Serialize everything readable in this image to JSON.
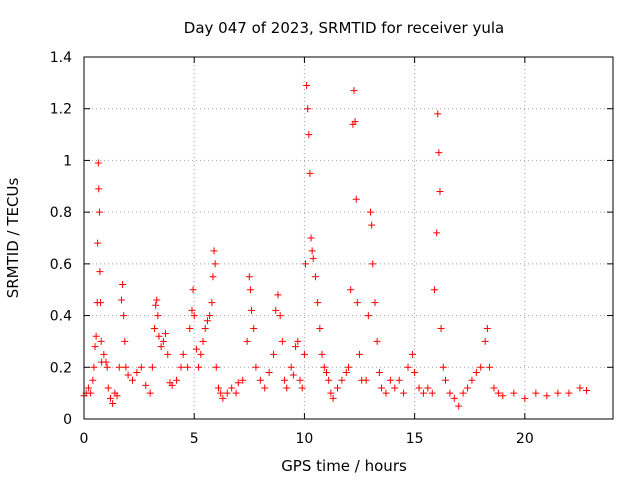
{
  "chart_data": {
    "type": "scatter",
    "title": "Day 047 of 2023, SRMTID for receiver yula",
    "xlabel": "GPS time / hours",
    "ylabel": "SRMTID / TECUs",
    "xlim": [
      0,
      24
    ],
    "ylim": [
      0,
      1.4
    ],
    "xticks": [
      0,
      5,
      10,
      15,
      20
    ],
    "xtick_labels": [
      "0",
      "5",
      "10",
      "15",
      "20"
    ],
    "yticks": [
      0,
      0.2,
      0.4,
      0.6,
      0.8,
      1.0,
      1.2,
      1.4
    ],
    "ytick_labels": [
      "0",
      "0.2",
      "0.4",
      "0.6",
      "0.8",
      "1",
      "1.2",
      "1.4"
    ],
    "grid": true,
    "marker": "+",
    "color": "#ff0000",
    "series": [
      {
        "name": "SRMTID",
        "points": [
          [
            0.0,
            0.09
          ],
          [
            0.1,
            0.1
          ],
          [
            0.2,
            0.12
          ],
          [
            0.3,
            0.1
          ],
          [
            0.4,
            0.15
          ],
          [
            0.45,
            0.2
          ],
          [
            0.5,
            0.28
          ],
          [
            0.55,
            0.32
          ],
          [
            0.6,
            0.45
          ],
          [
            0.62,
            0.68
          ],
          [
            0.65,
            0.99
          ],
          [
            0.67,
            0.89
          ],
          [
            0.7,
            0.8
          ],
          [
            0.72,
            0.57
          ],
          [
            0.75,
            0.45
          ],
          [
            0.78,
            0.3
          ],
          [
            0.8,
            0.22
          ],
          [
            0.9,
            0.25
          ],
          [
            1.0,
            0.22
          ],
          [
            1.05,
            0.2
          ],
          [
            1.1,
            0.12
          ],
          [
            1.2,
            0.08
          ],
          [
            1.3,
            0.06
          ],
          [
            1.4,
            0.1
          ],
          [
            1.5,
            0.09
          ],
          [
            1.6,
            0.2
          ],
          [
            1.7,
            0.46
          ],
          [
            1.75,
            0.52
          ],
          [
            1.8,
            0.4
          ],
          [
            1.85,
            0.3
          ],
          [
            1.9,
            0.2
          ],
          [
            2.0,
            0.17
          ],
          [
            2.2,
            0.15
          ],
          [
            2.4,
            0.18
          ],
          [
            2.6,
            0.2
          ],
          [
            2.8,
            0.13
          ],
          [
            3.0,
            0.1
          ],
          [
            3.1,
            0.2
          ],
          [
            3.2,
            0.35
          ],
          [
            3.25,
            0.44
          ],
          [
            3.3,
            0.46
          ],
          [
            3.35,
            0.4
          ],
          [
            3.4,
            0.32
          ],
          [
            3.5,
            0.28
          ],
          [
            3.6,
            0.3
          ],
          [
            3.7,
            0.33
          ],
          [
            3.8,
            0.25
          ],
          [
            3.9,
            0.14
          ],
          [
            4.0,
            0.13
          ],
          [
            4.2,
            0.15
          ],
          [
            4.4,
            0.2
          ],
          [
            4.5,
            0.25
          ],
          [
            4.7,
            0.2
          ],
          [
            4.8,
            0.35
          ],
          [
            4.9,
            0.42
          ],
          [
            4.95,
            0.5
          ],
          [
            5.0,
            0.4
          ],
          [
            5.1,
            0.27
          ],
          [
            5.2,
            0.2
          ],
          [
            5.3,
            0.25
          ],
          [
            5.4,
            0.3
          ],
          [
            5.5,
            0.35
          ],
          [
            5.6,
            0.38
          ],
          [
            5.7,
            0.4
          ],
          [
            5.8,
            0.45
          ],
          [
            5.85,
            0.55
          ],
          [
            5.9,
            0.65
          ],
          [
            5.95,
            0.6
          ],
          [
            6.0,
            0.2
          ],
          [
            6.1,
            0.12
          ],
          [
            6.2,
            0.1
          ],
          [
            6.3,
            0.08
          ],
          [
            6.5,
            0.1
          ],
          [
            6.7,
            0.12
          ],
          [
            6.9,
            0.1
          ],
          [
            7.0,
            0.14
          ],
          [
            7.2,
            0.15
          ],
          [
            7.4,
            0.3
          ],
          [
            7.5,
            0.55
          ],
          [
            7.55,
            0.5
          ],
          [
            7.6,
            0.42
          ],
          [
            7.7,
            0.35
          ],
          [
            7.8,
            0.2
          ],
          [
            8.0,
            0.15
          ],
          [
            8.2,
            0.12
          ],
          [
            8.4,
            0.18
          ],
          [
            8.6,
            0.25
          ],
          [
            8.7,
            0.42
          ],
          [
            8.8,
            0.48
          ],
          [
            8.9,
            0.4
          ],
          [
            9.0,
            0.3
          ],
          [
            9.1,
            0.15
          ],
          [
            9.2,
            0.12
          ],
          [
            9.4,
            0.2
          ],
          [
            9.5,
            0.17
          ],
          [
            9.6,
            0.28
          ],
          [
            9.7,
            0.3
          ],
          [
            9.8,
            0.15
          ],
          [
            9.9,
            0.12
          ],
          [
            10.0,
            0.25
          ],
          [
            10.05,
            0.6
          ],
          [
            10.1,
            1.29
          ],
          [
            10.15,
            1.2
          ],
          [
            10.2,
            1.1
          ],
          [
            10.25,
            0.95
          ],
          [
            10.3,
            0.7
          ],
          [
            10.35,
            0.65
          ],
          [
            10.4,
            0.62
          ],
          [
            10.5,
            0.55
          ],
          [
            10.6,
            0.45
          ],
          [
            10.7,
            0.35
          ],
          [
            10.8,
            0.25
          ],
          [
            10.9,
            0.2
          ],
          [
            11.0,
            0.18
          ],
          [
            11.1,
            0.15
          ],
          [
            11.2,
            0.1
          ],
          [
            11.3,
            0.08
          ],
          [
            11.5,
            0.12
          ],
          [
            11.7,
            0.15
          ],
          [
            11.9,
            0.18
          ],
          [
            12.0,
            0.2
          ],
          [
            12.1,
            0.5
          ],
          [
            12.2,
            1.14
          ],
          [
            12.25,
            1.27
          ],
          [
            12.3,
            1.15
          ],
          [
            12.35,
            0.85
          ],
          [
            12.4,
            0.45
          ],
          [
            12.5,
            0.25
          ],
          [
            12.6,
            0.15
          ],
          [
            12.8,
            0.15
          ],
          [
            12.9,
            0.4
          ],
          [
            13.0,
            0.8
          ],
          [
            13.05,
            0.75
          ],
          [
            13.1,
            0.6
          ],
          [
            13.2,
            0.45
          ],
          [
            13.3,
            0.3
          ],
          [
            13.4,
            0.18
          ],
          [
            13.5,
            0.12
          ],
          [
            13.7,
            0.1
          ],
          [
            13.9,
            0.15
          ],
          [
            14.1,
            0.12
          ],
          [
            14.3,
            0.15
          ],
          [
            14.5,
            0.1
          ],
          [
            14.7,
            0.2
          ],
          [
            14.9,
            0.25
          ],
          [
            15.0,
            0.18
          ],
          [
            15.2,
            0.12
          ],
          [
            15.4,
            0.1
          ],
          [
            15.6,
            0.12
          ],
          [
            15.8,
            0.1
          ],
          [
            15.9,
            0.5
          ],
          [
            16.0,
            0.72
          ],
          [
            16.05,
            1.18
          ],
          [
            16.1,
            1.03
          ],
          [
            16.15,
            0.88
          ],
          [
            16.2,
            0.35
          ],
          [
            16.3,
            0.2
          ],
          [
            16.4,
            0.15
          ],
          [
            16.6,
            0.1
          ],
          [
            16.8,
            0.08
          ],
          [
            17.0,
            0.05
          ],
          [
            17.2,
            0.1
          ],
          [
            17.4,
            0.12
          ],
          [
            17.6,
            0.15
          ],
          [
            17.8,
            0.18
          ],
          [
            18.0,
            0.2
          ],
          [
            18.2,
            0.3
          ],
          [
            18.3,
            0.35
          ],
          [
            18.4,
            0.2
          ],
          [
            18.6,
            0.12
          ],
          [
            18.8,
            0.1
          ],
          [
            19.0,
            0.09
          ],
          [
            19.5,
            0.1
          ],
          [
            20.0,
            0.08
          ],
          [
            20.5,
            0.1
          ],
          [
            21.0,
            0.09
          ],
          [
            21.5,
            0.1
          ],
          [
            22.0,
            0.1
          ],
          [
            22.5,
            0.12
          ],
          [
            22.8,
            0.11
          ]
        ]
      }
    ]
  }
}
